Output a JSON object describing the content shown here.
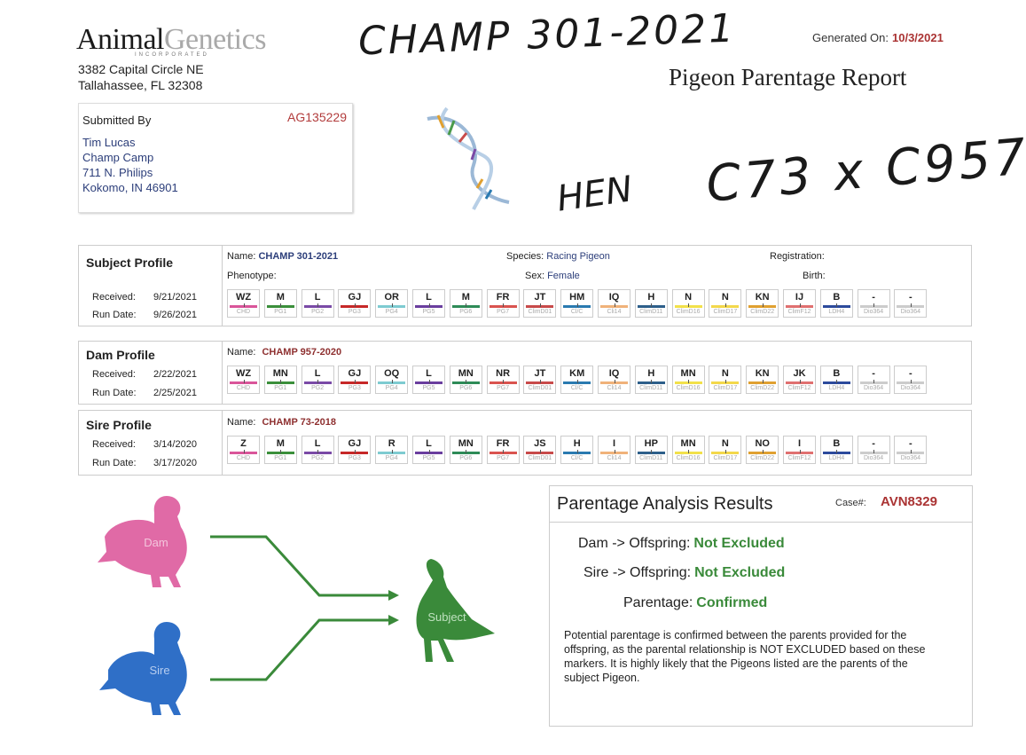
{
  "header": {
    "logo_left": "Animal",
    "logo_right": "Genetics",
    "logo_sub": "INCORPORATED",
    "address_line1": "3382 Capital Circle NE",
    "address_line2": "Tallahassee, FL 32308",
    "generated_label": "Generated On:",
    "generated_value": "10/3/2021",
    "report_title": "Pigeon Parentage Report"
  },
  "handwriting": {
    "top": "CHAMP 301-2021",
    "hen": "HEN",
    "cross": "C73 x C957"
  },
  "submitted": {
    "label": "Submitted By",
    "account": "AG135229",
    "name": "Tim Lucas",
    "org": "Champ Camp",
    "street": "711 N. Philips",
    "city": "Kokomo,  IN 46901"
  },
  "subject": {
    "title": "Subject Profile",
    "received_label": "Received:",
    "received": "9/21/2021",
    "run_label": "Run Date:",
    "run": "9/26/2021",
    "name_label": "Name:",
    "name": "CHAMP 301-2021",
    "species_label": "Species:",
    "species": "Racing Pigeon",
    "registration_label": "Registration:",
    "phenotype_label": "Phenotype:",
    "sex_label": "Sex:",
    "sex": "Female",
    "birth_label": "Birth:",
    "markers": [
      "WZ",
      "M",
      "L",
      "GJ",
      "OR",
      "L",
      "M",
      "FR",
      "JT",
      "HM",
      "IQ",
      "H",
      "N",
      "N",
      "KN",
      "IJ",
      "B",
      "-",
      "-"
    ],
    "marker_names": [
      "CHD",
      "PG1",
      "PG2",
      "PG3",
      "PG4",
      "PG5",
      "PG6",
      "PG7",
      "ClimD01",
      "Cl/C",
      "Cli14",
      "ClimD11",
      "ClimD16",
      "ClimD17",
      "ClimD22",
      "ClimF12",
      "LDH4",
      "Dio364",
      "Dio364"
    ]
  },
  "dam": {
    "title": "Dam Profile",
    "received_label": "Received:",
    "received": "2/22/2021",
    "run_label": "Run Date:",
    "run": "2/25/2021",
    "name_label": "Name:",
    "name": "CHAMP 957-2020",
    "markers": [
      "WZ",
      "MN",
      "L",
      "GJ",
      "OQ",
      "L",
      "MN",
      "NR",
      "JT",
      "KM",
      "IQ",
      "H",
      "MN",
      "N",
      "KN",
      "JK",
      "B",
      "-",
      "-"
    ],
    "marker_names": [
      "CHD",
      "PG1",
      "PG2",
      "PG3",
      "PG4",
      "PG5",
      "PG6",
      "PG7",
      "ClimD01",
      "Cl/C",
      "Cli14",
      "ClimD11",
      "ClimD16",
      "ClimD17",
      "ClimD22",
      "ClimF12",
      "LDH4",
      "Dio364",
      "Dio364"
    ]
  },
  "sire": {
    "title": "Sire Profile",
    "received_label": "Received:",
    "received": "3/14/2020",
    "run_label": "Run Date:",
    "run": "3/17/2020",
    "name_label": "Name:",
    "name": "CHAMP 73-2018",
    "markers": [
      "Z",
      "M",
      "L",
      "GJ",
      "R",
      "L",
      "MN",
      "FR",
      "JS",
      "H",
      "I",
      "HP",
      "MN",
      "N",
      "NO",
      "I",
      "B",
      "-",
      "-"
    ],
    "marker_names": [
      "CHD",
      "PG1",
      "PG2",
      "PG3",
      "PG4",
      "PG5",
      "PG6",
      "PG7",
      "ClimD01",
      "Cl/C",
      "Cli14",
      "ClimD11",
      "ClimD16",
      "ClimD17",
      "ClimD22",
      "ClimF12",
      "LDH4",
      "Dio364",
      "Dio364"
    ]
  },
  "marker_colors": [
    "#d9559a",
    "#3b8f3b",
    "#7a4aa6",
    "#c62828",
    "#7ecbd1",
    "#6a3e9e",
    "#2e8b57",
    "#d9534f",
    "#c84a4a",
    "#2a7ab0",
    "#f0b27a",
    "#2d5f8a",
    "#f2e14a",
    "#f3d84b",
    "#e0a030",
    "#e07070",
    "#2c4a9c",
    "#cccccc",
    "#cccccc"
  ],
  "diagram": {
    "dam_label": "Dam",
    "sire_label": "Sire",
    "subject_label": "Subject",
    "dam_color": "#e06aa6",
    "sire_color": "#2f6fc7",
    "subject_color": "#3a8a3a"
  },
  "results": {
    "title": "Parentage Analysis Results",
    "case_label": "Case#:",
    "case": "AVN8329",
    "dam_label": "Dam -> Offspring:",
    "dam_value": "Not Excluded",
    "sire_label": "Sire -> Offspring:",
    "sire_value": "Not Excluded",
    "parentage_label": "Parentage:",
    "parentage_value": "Confirmed",
    "paragraph": "Potential parentage is confirmed between the parents provided for the offspring, as the parental relationship is NOT EXCLUDED based on these markers.  It is highly likely that the Pigeons listed are the parents of the subject Pigeon."
  }
}
